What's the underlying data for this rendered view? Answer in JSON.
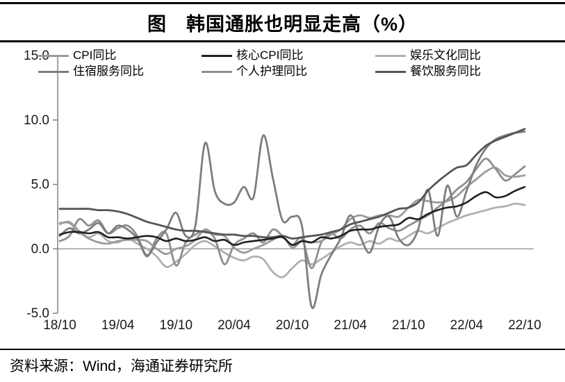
{
  "title": "图　韩国通胀也明显走高（%）",
  "source": "资料来源：Wind，海通证券研究所",
  "colors": {
    "cpi": "#9b9b9b",
    "core_cpi": "#1f1f1f",
    "entertainment": "#b0b0b0",
    "accommodation": "#7d7d7d",
    "personal_care": "#8e8e8e",
    "dining": "#555555",
    "axis": "#808080",
    "zero_line": "#8c8c8c",
    "tick_text": "#1a1a1a"
  },
  "chart_data": {
    "type": "line",
    "title": "图 韩国通胀也明显走高（%）",
    "xlabel": "",
    "ylabel": "",
    "x_unit": "month",
    "x_range": [
      "2018/10",
      "2022/10"
    ],
    "x_labels": [
      "18/10",
      "19/04",
      "19/10",
      "20/04",
      "20/10",
      "21/04",
      "21/10",
      "22/04",
      "22/10"
    ],
    "y_tick_labels": [
      "15.0",
      "10.0",
      "5.0",
      "0.0",
      "-5.0"
    ],
    "ylim": [
      -5.0,
      15.0
    ],
    "grid": "zero-line-only",
    "legend_position": "top-inside",
    "series": [
      {
        "name": "娱乐文化同比",
        "color_key": "entertainment",
        "values": [
          1.9,
          2.1,
          1.4,
          0.9,
          1.2,
          0.6,
          0.5,
          0.8,
          0.4,
          0.0,
          -0.6,
          -1.4,
          -1.0,
          -0.4,
          0.3,
          0.6,
          0.2,
          -0.3,
          -0.7,
          -0.9,
          -0.6,
          -0.8,
          -1.8,
          -2.2,
          -1.5,
          -0.9,
          -1.2,
          -0.8,
          -0.3,
          0.2,
          0.5,
          0.3,
          0.6,
          0.4,
          0.8,
          0.6,
          1.0,
          1.4,
          1.2,
          1.6,
          2.0,
          2.3,
          2.6,
          2.8,
          3.0,
          3.2,
          3.3,
          3.5,
          3.4
        ]
      },
      {
        "name": "个人护理同比",
        "color_key": "personal_care",
        "values": [
          0.6,
          1.0,
          2.3,
          1.8,
          2.2,
          1.2,
          1.6,
          1.8,
          1.0,
          -0.6,
          0.8,
          1.2,
          -1.3,
          0.5,
          1.1,
          1.4,
          0.8,
          -1.2,
          0.3,
          0.8,
          1.2,
          0.5,
          1.5,
          1.0,
          0.3,
          0.8,
          -1.5,
          0.5,
          1.2,
          0.8,
          1.5,
          1.8,
          1.2,
          2.0,
          1.6,
          1.4,
          1.8,
          2.2,
          2.6,
          3.2,
          3.8,
          4.6,
          5.2,
          6.2,
          7.0,
          6.2,
          5.3,
          5.8,
          6.4
        ]
      },
      {
        "name": "CPI同比",
        "color_key": "cpi",
        "values": [
          2.0,
          2.0,
          1.3,
          0.8,
          0.5,
          0.4,
          0.6,
          0.7,
          0.7,
          0.6,
          0.0,
          -0.4,
          0.0,
          0.2,
          0.7,
          1.5,
          1.1,
          1.0,
          0.1,
          -0.3,
          0.0,
          0.3,
          0.7,
          1.0,
          0.1,
          0.6,
          0.5,
          0.6,
          1.1,
          1.5,
          2.3,
          2.6,
          2.4,
          2.6,
          2.6,
          2.5,
          3.2,
          3.8,
          3.7,
          3.6,
          3.7,
          4.1,
          4.8,
          5.4,
          6.0,
          6.3,
          5.7,
          5.6,
          5.7
        ]
      },
      {
        "name": "住宿服务同比",
        "color_key": "accommodation",
        "values": [
          1.0,
          1.6,
          1.2,
          1.5,
          2.0,
          1.2,
          1.8,
          1.5,
          0.8,
          -0.5,
          0.5,
          1.5,
          2.8,
          1.0,
          1.8,
          8.2,
          4.5,
          3.5,
          3.6,
          4.8,
          4.0,
          8.8,
          5.5,
          2.2,
          2.5,
          1.8,
          -4.5,
          -2.0,
          -0.5,
          0.8,
          2.6,
          1.0,
          -0.3,
          1.8,
          2.5,
          0.8,
          0.3,
          1.5,
          4.6,
          1.0,
          4.9,
          2.5,
          4.5,
          6.5,
          7.8,
          8.5,
          8.8,
          9.0,
          9.1
        ]
      },
      {
        "name": "餐饮服务同比",
        "color_key": "dining",
        "values": [
          3.1,
          3.1,
          3.1,
          3.1,
          3.0,
          3.0,
          2.9,
          2.7,
          2.4,
          2.1,
          1.9,
          1.7,
          1.5,
          1.4,
          1.4,
          1.3,
          1.2,
          1.1,
          1.1,
          1.0,
          1.0,
          0.9,
          0.9,
          1.0,
          0.8,
          0.9,
          1.0,
          1.1,
          1.3,
          1.5,
          1.9,
          2.1,
          2.3,
          2.5,
          2.8,
          3.1,
          3.2,
          3.6,
          4.5,
          5.2,
          5.8,
          6.3,
          6.5,
          7.3,
          8.0,
          8.4,
          8.7,
          9.0,
          9.3
        ]
      },
      {
        "name": "核心CPI同比",
        "color_key": "core_cpi",
        "values": [
          1.1,
          1.3,
          1.3,
          1.2,
          1.3,
          0.9,
          0.9,
          0.8,
          0.9,
          1.0,
          0.9,
          0.6,
          0.8,
          0.6,
          0.7,
          0.9,
          0.6,
          0.7,
          0.3,
          0.5,
          0.6,
          0.7,
          0.8,
          0.9,
          0.3,
          0.6,
          0.5,
          0.9,
          0.8,
          1.0,
          1.4,
          1.5,
          1.5,
          1.7,
          1.8,
          1.9,
          2.4,
          2.3,
          2.7,
          3.0,
          3.2,
          3.3,
          3.6,
          4.1,
          4.4,
          4.0,
          4.1,
          4.5,
          4.8
        ]
      }
    ]
  },
  "legend": {
    "rows": [
      [
        {
          "label": "CPI同比",
          "color_key": "cpi"
        },
        {
          "label": "核心CPI同比",
          "color_key": "core_cpi"
        },
        {
          "label": "娱乐文化同比",
          "color_key": "entertainment"
        }
      ],
      [
        {
          "label": "住宿服务同比",
          "color_key": "accommodation"
        },
        {
          "label": "个人护理同比",
          "color_key": "personal_care"
        },
        {
          "label": "餐饮服务同比",
          "color_key": "dining"
        }
      ]
    ]
  }
}
